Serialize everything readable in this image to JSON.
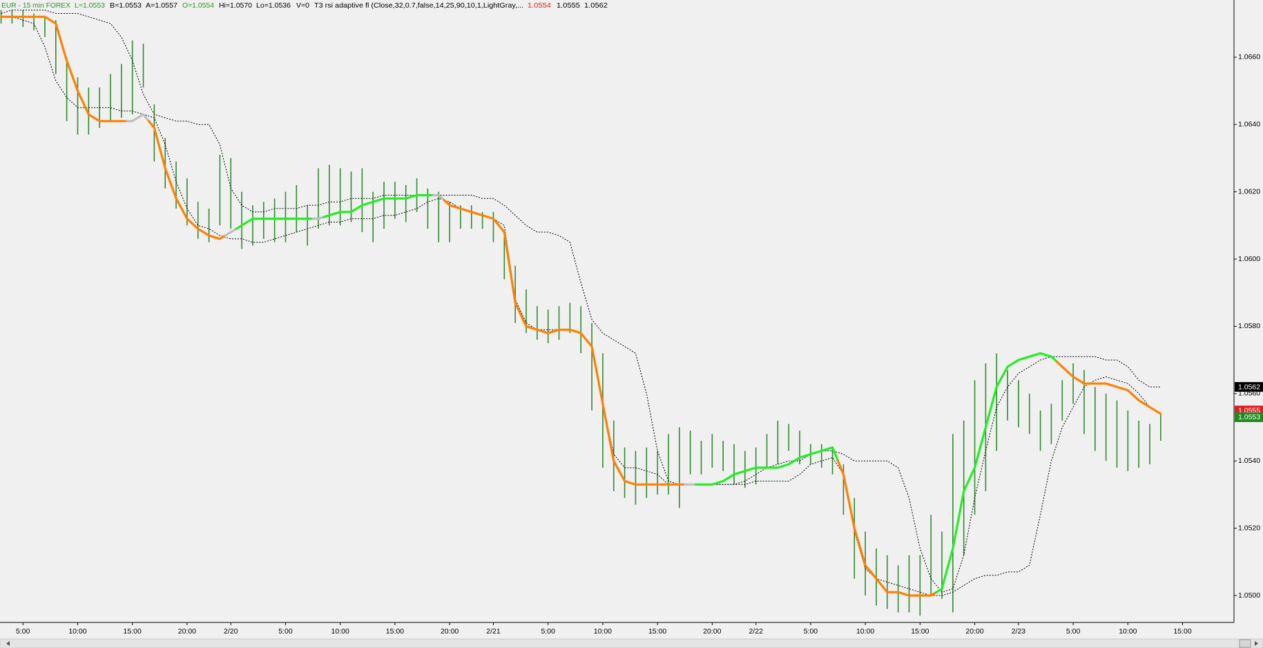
{
  "header": {
    "symbol": "EUR - 15 min  FOREX",
    "last": "L=1.0553",
    "bid": "B=1.0553",
    "ask": "A=1.0557",
    "open": "O=1.0554",
    "high": "Hi=1.0570",
    "low": "Lo=1.0536",
    "volume": "V=0",
    "indicator": "T3 rsi adaptive fl (Close,32,0.7,false,14,25,90,10,1,LightGray,...",
    "readings": [
      "1.0554",
      "1.0555",
      "1.0562"
    ]
  },
  "chart_data": {
    "type": "ohlc",
    "x": [
      3,
      4,
      5,
      6,
      7,
      8,
      9,
      10,
      11,
      12,
      13,
      14,
      15,
      16,
      17,
      18,
      19,
      20,
      21,
      22,
      23,
      24,
      25,
      26,
      27,
      28,
      29,
      30,
      31,
      32,
      33,
      34,
      35,
      36,
      37,
      38,
      39,
      40,
      41,
      42,
      43,
      44,
      45,
      46,
      47,
      48,
      49,
      50,
      51,
      52,
      53,
      54,
      55,
      56,
      57,
      58,
      59,
      60,
      61,
      62,
      63,
      64,
      65,
      66,
      67,
      68,
      69,
      70,
      71,
      72,
      73,
      74,
      75,
      76,
      77,
      78,
      79,
      80,
      81,
      82,
      83,
      84,
      85,
      86,
      87,
      88,
      89,
      90,
      91,
      92,
      93,
      94,
      95,
      96,
      97,
      98,
      99,
      100,
      101,
      102,
      103,
      104,
      105,
      106,
      107,
      108,
      109
    ],
    "high": [
      1.0674,
      1.0674,
      1.0674,
      1.0673,
      1.0672,
      1.0671,
      1.066,
      1.0654,
      1.0651,
      1.0651,
      1.0655,
      1.0658,
      1.0665,
      1.0664,
      1.0646,
      1.0636,
      1.0629,
      1.0624,
      1.0617,
      1.0615,
      1.0631,
      1.063,
      1.062,
      1.0616,
      1.0617,
      1.0618,
      1.062,
      1.0622,
      1.0616,
      1.0627,
      1.0628,
      1.0627,
      1.0626,
      1.0627,
      1.062,
      1.0623,
      1.0623,
      1.0622,
      1.0624,
      1.0621,
      1.062,
      1.0617,
      1.0616,
      1.0616,
      1.0614,
      1.0614,
      1.0608,
      1.0598,
      1.0591,
      1.0586,
      1.0585,
      1.0586,
      1.0587,
      1.0586,
      1.0581,
      1.0572,
      1.0552,
      1.0544,
      1.0543,
      1.0544,
      1.0543,
      1.0548,
      1.055,
      1.0549,
      1.0546,
      1.0548,
      1.0546,
      1.0545,
      1.0543,
      1.0544,
      1.0548,
      1.0552,
      1.0551,
      1.0549,
      1.0545,
      1.0545,
      1.0544,
      1.0539,
      1.0529,
      1.0519,
      1.0514,
      1.0512,
      1.0509,
      1.0512,
      1.0512,
      1.0524,
      1.0519,
      1.0548,
      1.0552,
      1.0564,
      1.0569,
      1.0572,
      1.0567,
      1.0564,
      1.056,
      1.0555,
      1.0557,
      1.0564,
      1.0569,
      1.0567,
      1.0562,
      1.056,
      1.0558,
      1.0555,
      1.0552,
      1.0551,
      1.0554
    ],
    "low": [
      1.067,
      1.067,
      1.0669,
      1.0668,
      1.0666,
      1.0655,
      1.0641,
      1.0637,
      1.0637,
      1.0639,
      1.0641,
      1.0642,
      1.0643,
      1.0651,
      1.0629,
      1.0621,
      1.0615,
      1.061,
      1.0606,
      1.0605,
      1.061,
      1.0609,
      1.0603,
      1.0604,
      1.0606,
      1.0605,
      1.0605,
      1.0608,
      1.0604,
      1.0609,
      1.061,
      1.061,
      1.0611,
      1.0608,
      1.0605,
      1.0609,
      1.0612,
      1.0611,
      1.0614,
      1.0609,
      1.0605,
      1.0605,
      1.0609,
      1.0609,
      1.0609,
      1.0605,
      1.0594,
      1.0581,
      1.0578,
      1.0576,
      1.0575,
      1.0576,
      1.0578,
      1.0572,
      1.0555,
      1.0538,
      1.0531,
      1.0529,
      1.0527,
      1.0529,
      1.053,
      1.053,
      1.0526,
      1.0536,
      1.0536,
      1.0538,
      1.0537,
      1.0533,
      1.0532,
      1.0533,
      1.0538,
      1.0539,
      1.0543,
      1.0539,
      1.0539,
      1.0538,
      1.0536,
      1.0524,
      1.0505,
      1.05,
      1.0497,
      1.0496,
      1.0495,
      1.0495,
      1.0494,
      1.05,
      1.0499,
      1.0495,
      1.0512,
      1.0524,
      1.0531,
      1.0543,
      1.0552,
      1.055,
      1.0548,
      1.0543,
      1.0545,
      1.0552,
      1.0557,
      1.0548,
      1.0543,
      1.054,
      1.0538,
      1.0537,
      1.0538,
      1.0539,
      1.0546
    ],
    "bar_color": "#2e8b2e",
    "t3": {
      "values": [
        1.0672,
        1.0672,
        1.0672,
        1.0672,
        1.0672,
        1.067,
        1.0659,
        1.065,
        1.0643,
        1.0641,
        1.0641,
        1.0641,
        1.0641,
        1.0643,
        1.0639,
        1.0627,
        1.0618,
        1.0612,
        1.0609,
        1.0607,
        1.0606,
        1.0608,
        1.061,
        1.0612,
        1.0612,
        1.0612,
        1.0612,
        1.0612,
        1.0612,
        1.0612,
        1.0613,
        1.0614,
        1.0614,
        1.0616,
        1.0617,
        1.0618,
        1.0618,
        1.0618,
        1.0619,
        1.0619,
        1.0619,
        1.0616,
        1.0615,
        1.0614,
        1.0613,
        1.0612,
        1.0608,
        1.0587,
        1.058,
        1.0579,
        1.0578,
        1.0579,
        1.0579,
        1.0578,
        1.0574,
        1.0557,
        1.054,
        1.0534,
        1.0533,
        1.0533,
        1.0533,
        1.0533,
        1.0533,
        1.0533,
        1.0533,
        1.0533,
        1.0534,
        1.0536,
        1.0537,
        1.0538,
        1.0538,
        1.0538,
        1.0539,
        1.0541,
        1.0542,
        1.0543,
        1.0544,
        1.0536,
        1.052,
        1.0509,
        1.0505,
        1.0501,
        1.0501,
        1.05,
        1.05,
        1.05,
        1.0502,
        1.0514,
        1.0531,
        1.0538,
        1.055,
        1.0562,
        1.0568,
        1.057,
        1.0571,
        1.0572,
        1.0571,
        1.0568,
        1.0565,
        1.0563,
        1.0563,
        1.0563,
        1.0562,
        1.0561,
        1.0558,
        1.0556,
        1.0554
      ],
      "colors": [
        "#ff8000",
        "#ff8000",
        "#ff8000",
        "#ff8000",
        "#ff8000",
        "#ff8000",
        "#ff8000",
        "#ff8000",
        "#ff8000",
        "#ff8000",
        "#ff8000",
        "#ff8000",
        "#bdbdbd",
        "#bdbdbd",
        "#ff8000",
        "#ff8000",
        "#ff8000",
        "#ff8000",
        "#ff8000",
        "#ff8000",
        "#ff8000",
        "#bdbdbd",
        "#22ee22",
        "#22ee22",
        "#22ee22",
        "#22ee22",
        "#22ee22",
        "#22ee22",
        "#22ee22",
        "#bdbdbd",
        "#22ee22",
        "#22ee22",
        "#22ee22",
        "#22ee22",
        "#22ee22",
        "#22ee22",
        "#22ee22",
        "#22ee22",
        "#22ee22",
        "#22ee22",
        "#bdbdbd",
        "#ff8000",
        "#ff8000",
        "#ff8000",
        "#ff8000",
        "#ff8000",
        "#ff8000",
        "#ff8000",
        "#ff8000",
        "#ff8000",
        "#ff8000",
        "#ff8000",
        "#ff8000",
        "#ff8000",
        "#ff8000",
        "#ff8000",
        "#ff8000",
        "#ff8000",
        "#ff8000",
        "#ff8000",
        "#ff8000",
        "#ff8000",
        "#ff8000",
        "#bdbdbd",
        "#22ee22",
        "#22ee22",
        "#22ee22",
        "#22ee22",
        "#22ee22",
        "#22ee22",
        "#22ee22",
        "#22ee22",
        "#22ee22",
        "#22ee22",
        "#22ee22",
        "#22ee22",
        "#22ee22",
        "#ff8000",
        "#ff8000",
        "#ff8000",
        "#ff8000",
        "#ff8000",
        "#ff8000",
        "#ff8000",
        "#ff8000",
        "#ff8000",
        "#22ee22",
        "#22ee22",
        "#22ee22",
        "#22ee22",
        "#22ee22",
        "#22ee22",
        "#22ee22",
        "#22ee22",
        "#22ee22",
        "#22ee22",
        "#22ee22",
        "#ff8000",
        "#ff8000",
        "#ff8000",
        "#ff8000",
        "#ff8000",
        "#ff8000",
        "#ff8000",
        "#ff8000",
        "#ff8000",
        "#ff8000"
      ]
    },
    "bands": [
      {
        "color": "#000000",
        "values": [
          1.0673,
          1.0674,
          1.0674,
          1.0674,
          1.0674,
          1.0673,
          1.0673,
          1.0673,
          1.0672,
          1.0671,
          1.067,
          1.0666,
          1.0659,
          1.0649,
          1.0643,
          1.0642,
          1.0641,
          1.0641,
          1.064,
          1.064,
          1.0634,
          1.0621,
          1.0616,
          1.0614,
          1.0614,
          1.0615,
          1.0615,
          1.0615,
          1.0616,
          1.0616,
          1.0617,
          1.0617,
          1.0618,
          1.0618,
          1.0618,
          1.0619,
          1.0619,
          1.0619,
          1.0619,
          1.0619,
          1.0619,
          1.0619,
          1.0619,
          1.0619,
          1.0618,
          1.0618,
          1.0616,
          1.0613,
          1.061,
          1.0608,
          1.0608,
          1.0607,
          1.0605,
          1.0593,
          1.0582,
          1.0578,
          1.0576,
          1.0574,
          1.0572,
          1.056,
          1.0543,
          1.0534,
          1.0533,
          1.0533,
          1.0533,
          1.0533,
          1.0533,
          1.0533,
          1.0534,
          1.0536,
          1.0538,
          1.0539,
          1.054,
          1.054,
          1.0542,
          1.0543,
          1.0543,
          1.0542,
          1.054,
          1.054,
          1.054,
          1.054,
          1.0538,
          1.0529,
          1.0514,
          1.0505,
          1.0501,
          1.0502,
          1.0512,
          1.0529,
          1.0543,
          1.0556,
          1.0562,
          1.0566,
          1.0568,
          1.057,
          1.0571,
          1.0571,
          1.0571,
          1.0571,
          1.0571,
          1.057,
          1.057,
          1.0568,
          1.0564,
          1.0562,
          1.0562
        ]
      },
      {
        "color": "#000000",
        "values": [
          1.0672,
          1.0672,
          1.0671,
          1.067,
          1.0663,
          1.0653,
          1.0648,
          1.0645,
          1.0645,
          1.0645,
          1.0645,
          1.0644,
          1.0644,
          1.0643,
          1.0642,
          1.0634,
          1.0623,
          1.0615,
          1.061,
          1.0609,
          1.0607,
          1.0606,
          1.0606,
          1.0605,
          1.0605,
          1.0606,
          1.0607,
          1.0608,
          1.0609,
          1.061,
          1.0611,
          1.0611,
          1.0612,
          1.0612,
          1.0612,
          1.0613,
          1.0613,
          1.0614,
          1.0615,
          1.0617,
          1.0618,
          1.0617,
          1.0615,
          1.0614,
          1.0613,
          1.0612,
          1.061,
          1.0588,
          1.0581,
          1.0579,
          1.0579,
          1.0579,
          1.0579,
          1.0578,
          1.0574,
          1.0557,
          1.0542,
          1.0538,
          1.0538,
          1.0537,
          1.0536,
          1.0533,
          1.0533,
          1.0533,
          1.0533,
          1.0533,
          1.0533,
          1.0533,
          1.0533,
          1.0534,
          1.0534,
          1.0534,
          1.0534,
          1.0536,
          1.0539,
          1.054,
          1.0541,
          1.0536,
          1.0519,
          1.0508,
          1.0505,
          1.0504,
          1.0503,
          1.0502,
          1.0501,
          1.05,
          1.05,
          1.0501,
          1.0503,
          1.0505,
          1.0506,
          1.0506,
          1.0507,
          1.0507,
          1.0509,
          1.0524,
          1.054,
          1.055,
          1.0556,
          1.0562,
          1.0564,
          1.0565,
          1.0564,
          1.0563,
          1.056,
          1.0556,
          1.0554
        ]
      }
    ],
    "xlim": [
      2.9,
      115.7
    ],
    "xticks": [
      {
        "value": 5,
        "label": "5:00"
      },
      {
        "value": 10,
        "label": "10:00"
      },
      {
        "value": 15,
        "label": "15:00"
      },
      {
        "value": 20,
        "label": "20:00"
      },
      {
        "value": 24,
        "label": "2/20"
      },
      {
        "value": 29,
        "label": "5:00"
      },
      {
        "value": 34,
        "label": "10:00"
      },
      {
        "value": 39,
        "label": "15:00"
      },
      {
        "value": 44,
        "label": "20:00"
      },
      {
        "value": 48,
        "label": "2/21"
      },
      {
        "value": 53,
        "label": "5:00"
      },
      {
        "value": 58,
        "label": "10:00"
      },
      {
        "value": 63,
        "label": "15:00"
      },
      {
        "value": 68,
        "label": "20:00"
      },
      {
        "value": 72,
        "label": "2/22"
      },
      {
        "value": 77,
        "label": "5:00"
      },
      {
        "value": 82,
        "label": "10:00"
      },
      {
        "value": 87,
        "label": "15:00"
      },
      {
        "value": 92,
        "label": "20:00"
      },
      {
        "value": 96,
        "label": "2/23"
      },
      {
        "value": 101,
        "label": "5:00"
      },
      {
        "value": 106,
        "label": "10:00"
      },
      {
        "value": 111,
        "label": "15:00"
      }
    ],
    "ylim": [
      1.0492,
      1.0674
    ],
    "yticks": [
      {
        "value": 1.05,
        "label": "1.0500"
      },
      {
        "value": 1.052,
        "label": "1.0520"
      },
      {
        "value": 1.054,
        "label": "1.0540"
      },
      {
        "value": 1.056,
        "label": "1.0560"
      },
      {
        "value": 1.058,
        "label": "1.0580"
      },
      {
        "value": 1.06,
        "label": "1.0600"
      },
      {
        "value": 1.062,
        "label": "1.0620"
      },
      {
        "value": 1.064,
        "label": "1.0640"
      },
      {
        "value": 1.066,
        "label": "1.0660"
      }
    ],
    "price_markers": [
      {
        "value": 1.0555,
        "label": "1.0555",
        "color": "#e02020"
      },
      {
        "value": 1.0562,
        "label": "1.0562",
        "color": "#000000"
      },
      {
        "value": 1.0553,
        "label": "1.0553",
        "color": "#1e8a1e"
      }
    ]
  }
}
